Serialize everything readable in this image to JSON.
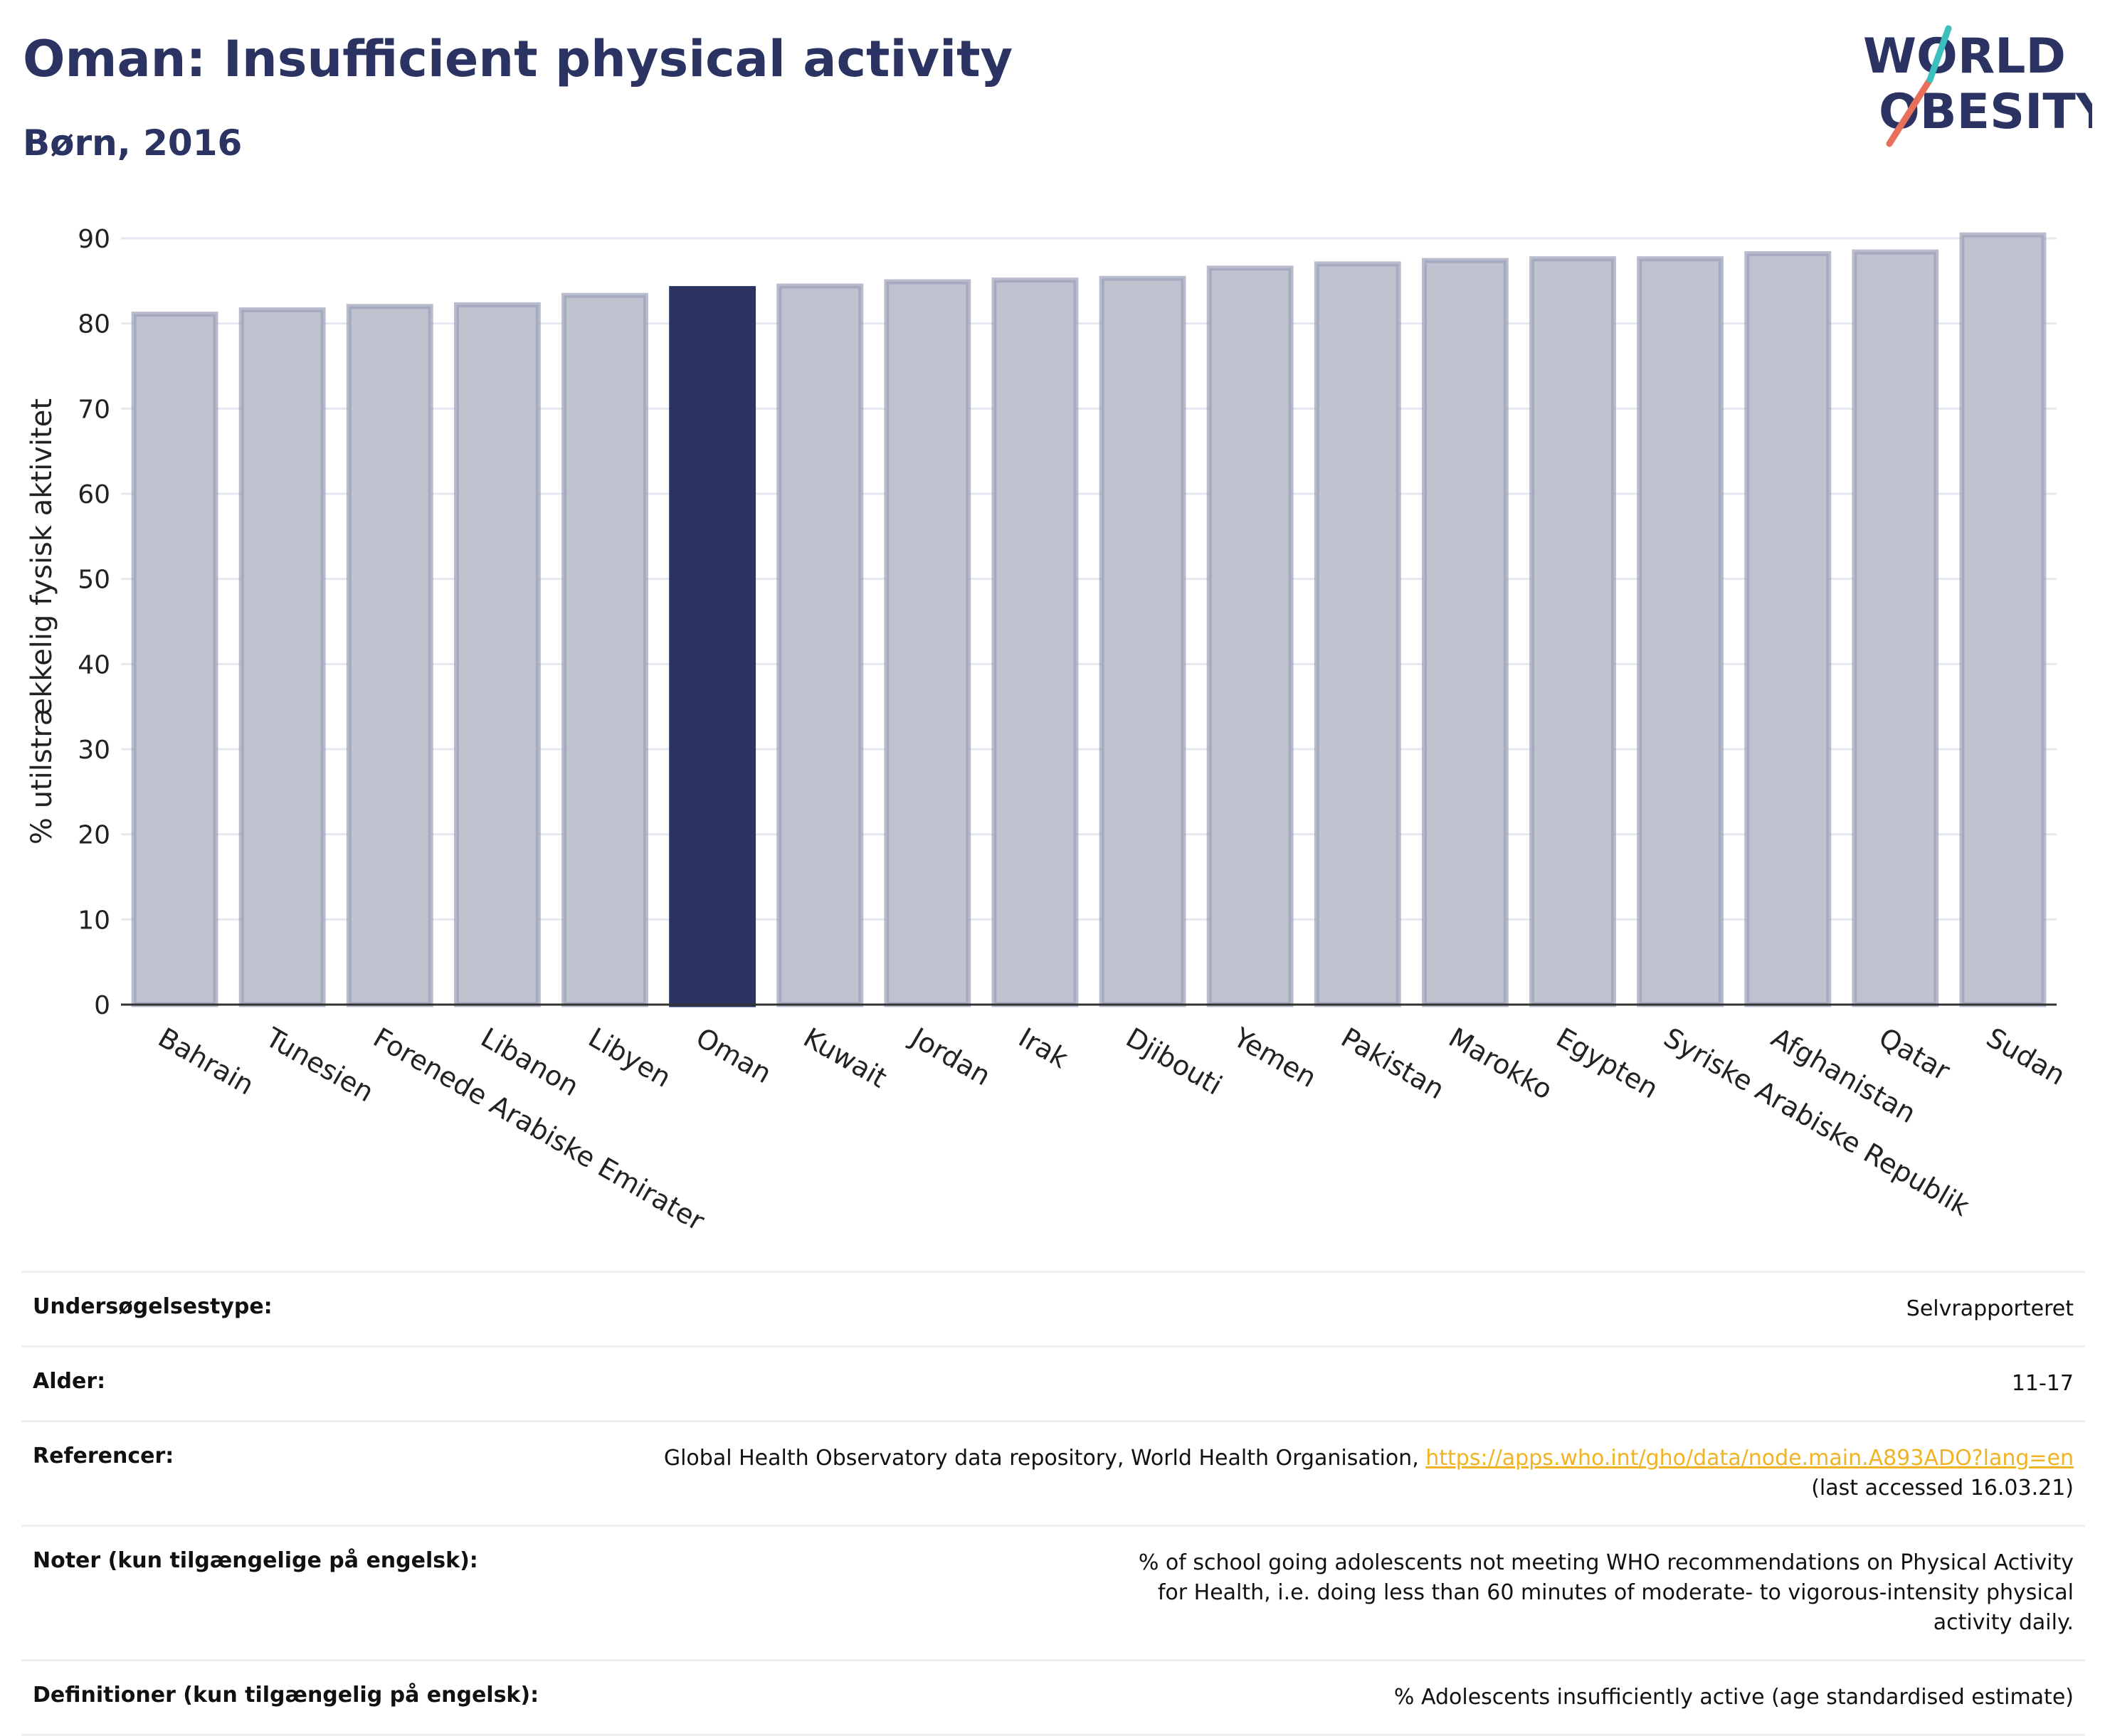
{
  "header": {
    "title": "Oman: Insufficient physical activity",
    "subtitle": "Børn, 2016"
  },
  "logo": {
    "line1": "WORLD",
    "line2": "OBESITY"
  },
  "chart_data": {
    "type": "bar",
    "categories": [
      "Bahrain",
      "Tunesien",
      "Forenede Arabiske Emirater",
      "Libanon",
      "Libyen",
      "Oman",
      "Kuwait",
      "Jordan",
      "Irak",
      "Djibouti",
      "Yemen",
      "Pakistan",
      "Marokko",
      "Egypten",
      "Syriske Arabiske Republik",
      "Afghanistan",
      "Qatar",
      "Sudan"
    ],
    "values": [
      81.1,
      81.6,
      82.0,
      82.2,
      83.3,
      84.1,
      84.4,
      84.9,
      85.1,
      85.3,
      86.5,
      87.0,
      87.4,
      87.6,
      87.6,
      88.2,
      88.4,
      90.4
    ],
    "highlight": "Oman",
    "title": "",
    "xlabel": "",
    "ylabel": "% utilstrækkelig fysisk aktivitet",
    "ylim": [
      0,
      90
    ],
    "yticks": [
      0,
      10,
      20,
      30,
      40,
      50,
      60,
      70,
      80,
      90
    ],
    "grid": true,
    "colors": {
      "bar": "#bfc2cf",
      "bar_border": "#9a9fb8",
      "highlight": "#2b3362",
      "grid": "#e6e8ef",
      "axis": "#333333"
    }
  },
  "meta": {
    "rows": [
      {
        "key": "Undersøgelsestype:",
        "value": "Selvrapporteret"
      },
      {
        "key": "Alder:",
        "value": "11-17"
      },
      {
        "key": "Referencer:",
        "value": "Global Health Observatory data repository, World Health Organisation, ",
        "link": "https://apps.who.int/gho/data/node.main.A893ADO?lang=en",
        "value2": "(last accessed 16.03.21)"
      },
      {
        "key": "Noter (kun tilgængelige på engelsk):",
        "value": "% of school going adolescents not meeting WHO recommendations on Physical Activity for Health, i.e. doing less than 60 minutes of moderate- to vigorous-intensity physical activity daily."
      },
      {
        "key": "Definitioner (kun tilgængelig på engelsk):",
        "value": "% Adolescents insufficiently active (age standardised estimate)"
      }
    ]
  }
}
